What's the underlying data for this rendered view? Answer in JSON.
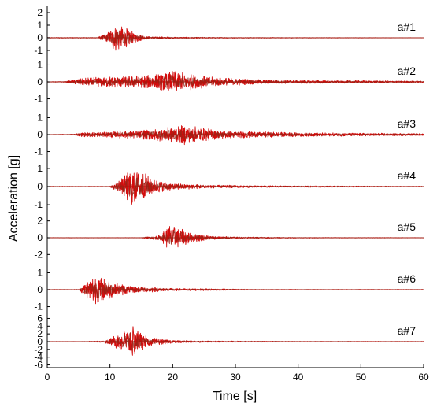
{
  "chart_data": {
    "type": "line",
    "xlabel": "Time  [s]",
    "ylabel": "Acceleration [g]",
    "xlim": [
      0,
      60
    ],
    "xticks": [
      "0",
      "10",
      "20",
      "30",
      "40",
      "50",
      "60"
    ],
    "grid": false,
    "legend": "none",
    "colors": {
      "signal": "#d00000",
      "signal_dark": "#8a2a1a",
      "axis": "#000000"
    },
    "series": [
      {
        "name": "a#1",
        "yticks": [
          "2",
          "1",
          "0",
          "-1"
        ],
        "ylim": [
          -1.3,
          2
        ],
        "envelope": [
          [
            8,
            0.03
          ],
          [
            9.8,
            0.5
          ],
          [
            10.6,
            1.1
          ],
          [
            11.5,
            1.15
          ],
          [
            12.5,
            0.85
          ],
          [
            14,
            0.4
          ],
          [
            16,
            0.12
          ],
          [
            20,
            0.06
          ],
          [
            30,
            0.03
          ],
          [
            60,
            0.01
          ]
        ]
      },
      {
        "name": "a#2",
        "yticks": [
          "1",
          "0",
          "-1"
        ],
        "ylim": [
          -1.1,
          1.3
        ],
        "envelope": [
          [
            0,
            0.01
          ],
          [
            3,
            0.03
          ],
          [
            5,
            0.2
          ],
          [
            8,
            0.3
          ],
          [
            14,
            0.38
          ],
          [
            17,
            0.45
          ],
          [
            20,
            0.7
          ],
          [
            22.5,
            0.5
          ],
          [
            25,
            0.35
          ],
          [
            28,
            0.25
          ],
          [
            35,
            0.12
          ],
          [
            50,
            0.08
          ],
          [
            60,
            0.05
          ]
        ]
      },
      {
        "name": "a#3",
        "yticks": [
          "1",
          "0",
          "-1"
        ],
        "ylim": [
          -1.1,
          1.3
        ],
        "envelope": [
          [
            0,
            0.01
          ],
          [
            4,
            0.03
          ],
          [
            5.5,
            0.12
          ],
          [
            10,
            0.18
          ],
          [
            14,
            0.25
          ],
          [
            17,
            0.35
          ],
          [
            20,
            0.5
          ],
          [
            22,
            0.6
          ],
          [
            25,
            0.38
          ],
          [
            29,
            0.22
          ],
          [
            40,
            0.12
          ],
          [
            55,
            0.08
          ],
          [
            60,
            0.06
          ]
        ]
      },
      {
        "name": "a#4",
        "yticks": [
          "1",
          "0",
          "-1"
        ],
        "ylim": [
          -1.1,
          1.3
        ],
        "envelope": [
          [
            10,
            0.02
          ],
          [
            12,
            0.5
          ],
          [
            13.5,
            1.15
          ],
          [
            15,
            0.9
          ],
          [
            17,
            0.4
          ],
          [
            20,
            0.2
          ],
          [
            25,
            0.1
          ],
          [
            35,
            0.05
          ],
          [
            60,
            0.02
          ]
        ]
      },
      {
        "name": "a#5",
        "yticks": [
          "2",
          "0",
          "-2"
        ],
        "ylim": [
          -3,
          3
        ],
        "envelope": [
          [
            15,
            0.02
          ],
          [
            18,
            0.3
          ],
          [
            19.5,
            1.6
          ],
          [
            21,
            1.3
          ],
          [
            23,
            0.6
          ],
          [
            26,
            0.25
          ],
          [
            30,
            0.1
          ],
          [
            40,
            0.04
          ],
          [
            60,
            0.02
          ]
        ]
      },
      {
        "name": "a#6",
        "yticks": [
          "1",
          "0",
          "-1"
        ],
        "ylim": [
          -1.1,
          1.3
        ],
        "envelope": [
          [
            5,
            0.02
          ],
          [
            6.5,
            0.6
          ],
          [
            7.5,
            0.9
          ],
          [
            9,
            0.75
          ],
          [
            11,
            0.4
          ],
          [
            14,
            0.2
          ],
          [
            20,
            0.08
          ],
          [
            30,
            0.04
          ],
          [
            33,
            0.02
          ]
        ]
      },
      {
        "name": "a#7",
        "yticks": [
          "6",
          "4",
          "2",
          "0",
          "-2",
          "-4",
          "-6"
        ],
        "ylim": [
          -6.5,
          6.5
        ],
        "envelope": [
          [
            5,
            0.05
          ],
          [
            9,
            0.2
          ],
          [
            11,
            1.8
          ],
          [
            12.5,
            3
          ],
          [
            13.5,
            4.5
          ],
          [
            14.5,
            3.2
          ],
          [
            16,
            1.2
          ],
          [
            20,
            0.4
          ],
          [
            25,
            0.2
          ],
          [
            40,
            0.1
          ],
          [
            60,
            0.08
          ]
        ]
      }
    ]
  }
}
